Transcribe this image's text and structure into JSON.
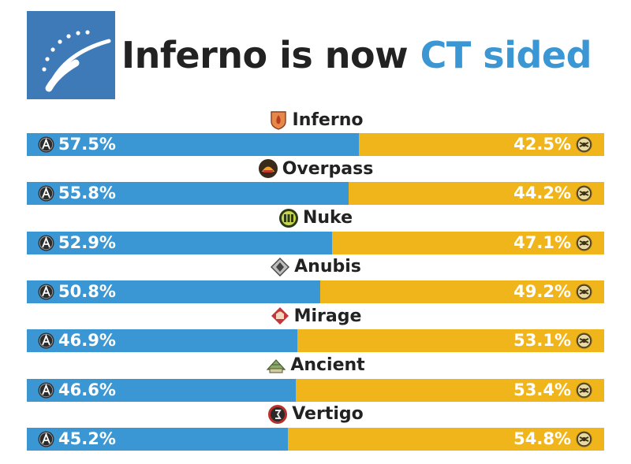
{
  "header": {
    "title_prefix": "Inferno is now",
    "title_accent": "CT sided",
    "logo_icon": "dotted-arc-logo-icon"
  },
  "colors": {
    "ct": "#3a97d4",
    "t": "#f1b51c",
    "logo_bg": "#3d7ab7",
    "text": "#222222"
  },
  "icons": {
    "ct": "ct-faction-icon",
    "t": "t-faction-icon"
  },
  "chart_data": {
    "type": "bar",
    "orientation": "horizontal-stacked-100",
    "title": "Inferno is now CT sided",
    "categories": [
      "Inferno",
      "Overpass",
      "Nuke",
      "Anubis",
      "Mirage",
      "Ancient",
      "Vertigo"
    ],
    "series": [
      {
        "values": [
          57.5,
          55.8,
          52.9,
          50.8,
          46.9,
          46.6,
          45.2
        ]
      },
      {
        "values": [
          42.5,
          44.2,
          47.1,
          49.2,
          53.1,
          53.4,
          54.8
        ]
      }
    ],
    "labels_ct": [
      "57.5%",
      "55.8%",
      "52.9%",
      "50.8%",
      "46.9%",
      "46.6%",
      "45.2%"
    ],
    "labels_t": [
      "42.5%",
      "44.2%",
      "47.1%",
      "49.2%",
      "53.1%",
      "53.4%",
      "54.8%"
    ],
    "xlim": [
      0,
      100
    ],
    "grid": false
  },
  "map_icons": [
    "inferno-map-icon",
    "overpass-map-icon",
    "nuke-map-icon",
    "anubis-map-icon",
    "mirage-map-icon",
    "ancient-map-icon",
    "vertigo-map-icon"
  ]
}
